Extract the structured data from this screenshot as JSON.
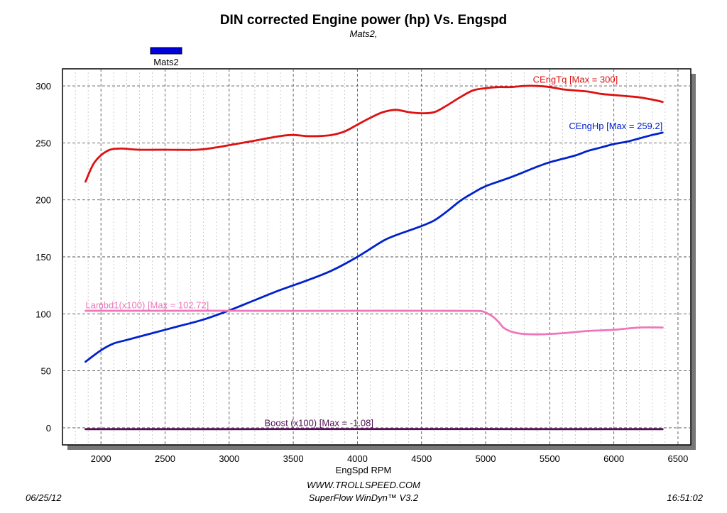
{
  "chart_data": {
    "type": "line",
    "title": "DIN corrected Engine power (hp) Vs. Engspd",
    "subtitle": "Mats2,",
    "xlabel": "EngSpd RPM",
    "ylabel": "",
    "xlim": [
      1700,
      6600
    ],
    "ylim": [
      -15,
      315
    ],
    "x_ticks": [
      2000,
      2500,
      3000,
      3500,
      4000,
      4500,
      5000,
      5500,
      6000,
      6500
    ],
    "y_ticks": [
      0,
      50,
      100,
      150,
      200,
      250,
      300
    ],
    "x_tick_labels": [
      "2000",
      "2500",
      "3000",
      "3500",
      "4000",
      "4500",
      "5000",
      "5500",
      "6000",
      "6500"
    ],
    "y_tick_labels": [
      "0",
      "50",
      "100",
      "150",
      "200",
      "250",
      "300"
    ],
    "grid": true,
    "legend": {
      "placement": "top-left",
      "entries": [
        {
          "name": "Mats2",
          "color": "#0000dd"
        }
      ]
    },
    "series": [
      {
        "name": "CEngTq [Max = 300]",
        "color": "#dd1111",
        "x": [
          1880,
          1950,
          2050,
          2150,
          2300,
          2500,
          2750,
          2900,
          3000,
          3200,
          3400,
          3500,
          3600,
          3700,
          3800,
          3900,
          4000,
          4100,
          4200,
          4300,
          4400,
          4500,
          4600,
          4700,
          4800,
          4900,
          5000,
          5100,
          5200,
          5300,
          5400,
          5500,
          5600,
          5700,
          5800,
          5900,
          6000,
          6100,
          6200,
          6300,
          6380
        ],
        "values": [
          216,
          233,
          243,
          245,
          244,
          244,
          244,
          246,
          248,
          252,
          256,
          257,
          256,
          256,
          257,
          260,
          266,
          272,
          277,
          279,
          277,
          276,
          277,
          283,
          290,
          296,
          298,
          299,
          299,
          300,
          300,
          299,
          297,
          296,
          295,
          293,
          292,
          291,
          290,
          288,
          286
        ]
      },
      {
        "name": "CEngHp [Max = 259.2]",
        "color": "#0022cc",
        "x": [
          1880,
          2000,
          2100,
          2200,
          2400,
          2600,
          2800,
          3000,
          3200,
          3400,
          3600,
          3800,
          4000,
          4200,
          4300,
          4400,
          4500,
          4600,
          4700,
          4800,
          4900,
          5000,
          5200,
          5400,
          5500,
          5600,
          5700,
          5800,
          5900,
          6000,
          6100,
          6200,
          6300,
          6380
        ],
        "values": [
          58,
          68,
          74,
          77,
          83,
          89,
          95,
          103,
          112,
          121,
          129,
          138,
          150,
          164,
          169,
          173,
          177,
          182,
          190,
          199,
          206,
          212,
          220,
          229,
          233,
          236,
          239,
          243,
          246,
          249,
          251,
          254,
          257,
          259
        ]
      },
      {
        "name": "Lambd1(x100) [Max = 102.72]",
        "color": "#ee77bb",
        "x": [
          1880,
          2500,
          3000,
          3500,
          4000,
          4500,
          4900,
          4980,
          5050,
          5100,
          5150,
          5250,
          5400,
          5600,
          5800,
          6000,
          6200,
          6380
        ],
        "values": [
          102.7,
          102.7,
          102.7,
          102.6,
          102.7,
          102.7,
          102.6,
          102.0,
          98,
          93,
          87,
          83,
          82,
          83,
          85,
          86,
          88,
          88
        ]
      },
      {
        "name": "Boost (x100) [Max = -1.08]",
        "color": "#551155",
        "x": [
          1880,
          2500,
          3000,
          3500,
          4000,
          4500,
          5000,
          5500,
          6000,
          6380
        ],
        "values": [
          -1.2,
          -1.2,
          -1.15,
          -1.1,
          -1.1,
          -1.1,
          -1.1,
          -1.15,
          -1.2,
          -1.2
        ]
      }
    ]
  },
  "footer": {
    "date": "06/25/12",
    "website": "WWW.TROLLSPEED.COM",
    "software": "SuperFlow WinDyn™ V3.2",
    "time": "16:51:02"
  }
}
